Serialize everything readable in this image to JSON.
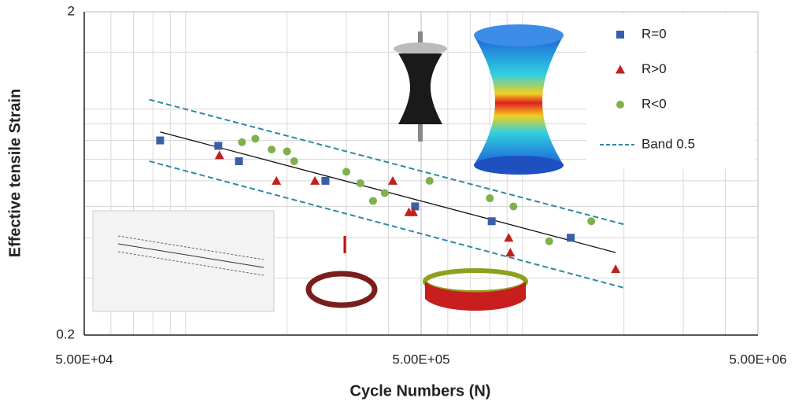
{
  "chart_data": {
    "type": "scatter",
    "xlabel": "Cycle Numbers (N)",
    "ylabel": "Effective tensile Strain",
    "log_x": true,
    "log_y": true,
    "grid": true,
    "xlim": [
      50000,
      5000000
    ],
    "ylim": [
      0.2,
      2
    ],
    "xticks": [
      {
        "value": 50000,
        "label": "5.00E+04"
      },
      {
        "value": 500000,
        "label": "5.00E+05"
      },
      {
        "value": 5000000,
        "label": "5.00E+06"
      }
    ],
    "yticks": [
      0.2,
      2
    ],
    "xgrid": [
      60000,
      70000,
      80000,
      90000,
      100000,
      200000,
      300000,
      400000,
      600000,
      700000,
      800000,
      900000,
      1000000,
      2000000,
      3000000,
      4000000
    ],
    "ygrid": [
      0.3,
      0.4,
      0.5,
      0.6,
      0.7,
      0.8,
      0.9,
      1,
      1.5
    ],
    "legend": "top-right",
    "series": [
      {
        "name": "R=0",
        "marker": "square",
        "color": "#3a5fa8",
        "x": [
          84000,
          125000,
          144000,
          260000,
          480000,
          810000,
          1390000
        ],
        "values": [
          0.8,
          0.77,
          0.69,
          0.6,
          0.5,
          0.45,
          0.4
        ]
      },
      {
        "name": "R>0",
        "marker": "triangle",
        "color": "#c0201f",
        "x": [
          126000,
          186000,
          242000,
          412000,
          460000,
          474000,
          910000,
          920000,
          1890000
        ],
        "values": [
          0.72,
          0.6,
          0.6,
          0.6,
          0.48,
          0.48,
          0.4,
          0.36,
          0.32
        ]
      },
      {
        "name": "R<0",
        "marker": "circle",
        "color": "#7fb04a",
        "x": [
          147000,
          161000,
          180000,
          200000,
          210000,
          300000,
          330000,
          360000,
          390000,
          530000,
          800000,
          940000,
          1200000,
          1600000
        ],
        "values": [
          0.79,
          0.81,
          0.75,
          0.74,
          0.69,
          0.64,
          0.59,
          0.52,
          0.55,
          0.6,
          0.53,
          0.5,
          0.39,
          0.45
        ]
      }
    ],
    "fit_line": {
      "color": "#111111",
      "x": [
        84000,
        1890000
      ],
      "values": [
        0.85,
        0.36
      ]
    },
    "band": {
      "name": "Band 0.5",
      "color": "#2f88a6",
      "upper": {
        "x": [
          78000,
          2000000
        ],
        "values": [
          1.07,
          0.44
        ]
      },
      "lower": {
        "x": [
          78000,
          2000000
        ],
        "values": [
          0.69,
          0.28
        ]
      }
    }
  }
}
